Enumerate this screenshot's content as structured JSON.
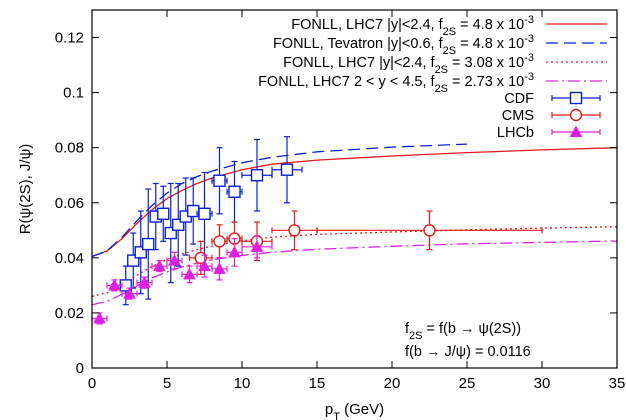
{
  "chart_data": {
    "type": "line",
    "xlabel": "p",
    "xlabel_sub": "T",
    "xlabel_unit": " (GeV)",
    "ylabel": "R(ψ(2S), J/ψ)",
    "xlim": [
      0,
      35
    ],
    "ylim": [
      0,
      0.13
    ],
    "xticks": [
      0,
      5,
      10,
      15,
      20,
      25,
      30,
      35
    ],
    "yticks": [
      0,
      0.02,
      0.04,
      0.06,
      0.08,
      0.1,
      0.12
    ],
    "ytick_labels": [
      "0",
      "0.02",
      "0.04",
      "0.06",
      "0.08",
      "0.1",
      "0.12"
    ],
    "grid": false,
    "legend_position": "top-right",
    "curves": [
      {
        "legend": {
          "pre": "FONLL, LHC7 |y|<2.4, f",
          "sub": "2S",
          "mid": " = 4.8 x 10",
          "sup": "-3"
        },
        "color": "#e41a1c",
        "dash": "solid",
        "x": [
          0,
          1,
          2,
          3,
          4,
          5,
          6,
          7,
          8,
          10,
          12,
          15,
          20,
          25,
          30,
          35
        ],
        "y": [
          0.0405,
          0.0425,
          0.047,
          0.0525,
          0.0575,
          0.0615,
          0.0645,
          0.067,
          0.069,
          0.072,
          0.074,
          0.0755,
          0.077,
          0.0782,
          0.0792,
          0.08
        ]
      },
      {
        "legend": {
          "pre": "FONLL, Tevatron |y|<0.6, f",
          "sub": "2S",
          "mid": " = 4.8 x 10",
          "sup": "-3"
        },
        "color": "#0b1fd1",
        "dash": "12,6",
        "x": [
          0,
          1,
          2,
          3,
          4,
          5,
          6,
          7,
          8,
          10,
          12,
          15,
          20,
          25
        ],
        "y": [
          0.0405,
          0.0425,
          0.0475,
          0.0535,
          0.059,
          0.0635,
          0.067,
          0.0695,
          0.0715,
          0.0745,
          0.0765,
          0.0785,
          0.0802,
          0.0813
        ]
      },
      {
        "legend": {
          "pre": "FONLL, LHC7 |y|<2.4, f",
          "sub": "2S",
          "mid": " = 3.08 x 10",
          "sup": "-3"
        },
        "color": "#e41a1c",
        "dash": "2,3",
        "x": [
          0,
          1,
          2,
          3,
          4,
          5,
          6,
          7,
          8,
          10,
          12,
          15,
          20,
          25,
          30,
          35
        ],
        "y": [
          0.026,
          0.0273,
          0.0302,
          0.0337,
          0.0369,
          0.0394,
          0.0414,
          0.043,
          0.0443,
          0.0462,
          0.0475,
          0.0485,
          0.0494,
          0.0502,
          0.0508,
          0.0513
        ]
      },
      {
        "legend": {
          "pre": "FONLL, LHC7 2 < y < 4.5, f",
          "sub": "2S",
          "mid": " = 2.73 x 10",
          "sup": "-3"
        },
        "color": "#e020e0",
        "dash": "12,4,2,4",
        "x": [
          0,
          1,
          2,
          3,
          4,
          5,
          6,
          7,
          8,
          10,
          12,
          15,
          20,
          25,
          30,
          35
        ],
        "y": [
          0.023,
          0.0242,
          0.0268,
          0.0298,
          0.0327,
          0.0349,
          0.0367,
          0.0381,
          0.0393,
          0.0409,
          0.042,
          0.0431,
          0.0442,
          0.0451,
          0.0456,
          0.0461
        ]
      }
    ],
    "data_series": [
      {
        "name": "CDF",
        "marker": "square",
        "color": "#0b1fd1",
        "points": [
          {
            "x": 2.25,
            "y": 0.03,
            "xerr": 0.25,
            "yerr": 0.007
          },
          {
            "x": 2.75,
            "y": 0.039,
            "xerr": 0.25,
            "yerr": 0.01
          },
          {
            "x": 3.25,
            "y": 0.042,
            "xerr": 0.25,
            "yerr": 0.015
          },
          {
            "x": 3.75,
            "y": 0.045,
            "xerr": 0.25,
            "yerr": 0.02
          },
          {
            "x": 4.25,
            "y": 0.055,
            "xerr": 0.25,
            "yerr": 0.012
          },
          {
            "x": 4.75,
            "y": 0.056,
            "xerr": 0.25,
            "yerr": 0.01
          },
          {
            "x": 5.25,
            "y": 0.049,
            "xerr": 0.25,
            "yerr": 0.018
          },
          {
            "x": 5.75,
            "y": 0.052,
            "xerr": 0.25,
            "yerr": 0.015
          },
          {
            "x": 6.25,
            "y": 0.055,
            "xerr": 0.25,
            "yerr": 0.014
          },
          {
            "x": 6.75,
            "y": 0.057,
            "xerr": 0.25,
            "yerr": 0.012
          },
          {
            "x": 7.5,
            "y": 0.056,
            "xerr": 0.5,
            "yerr": 0.015
          },
          {
            "x": 8.5,
            "y": 0.068,
            "xerr": 0.5,
            "yerr": 0.012
          },
          {
            "x": 9.5,
            "y": 0.064,
            "xerr": 0.5,
            "yerr": 0.011
          },
          {
            "x": 11.0,
            "y": 0.07,
            "xerr": 1.0,
            "yerr": 0.013
          },
          {
            "x": 13.0,
            "y": 0.072,
            "xerr": 1.0,
            "yerr": 0.012
          }
        ]
      },
      {
        "name": "CMS",
        "marker": "circle",
        "color": "#e41a1c",
        "points": [
          {
            "x": 7.25,
            "y": 0.04,
            "xerr": 0.75,
            "yerr": 0.006
          },
          {
            "x": 8.5,
            "y": 0.046,
            "xerr": 0.5,
            "yerr": 0.006
          },
          {
            "x": 9.5,
            "y": 0.047,
            "xerr": 0.5,
            "yerr": 0.006
          },
          {
            "x": 11.0,
            "y": 0.046,
            "xerr": 1.0,
            "yerr": 0.007
          },
          {
            "x": 13.5,
            "y": 0.05,
            "xerr": 1.5,
            "yerr": 0.007
          },
          {
            "x": 22.5,
            "y": 0.05,
            "xerr": 7.5,
            "yerr": 0.007
          }
        ]
      },
      {
        "name": "LHCb",
        "marker": "triangle",
        "color": "#e020e0",
        "points": [
          {
            "x": 0.5,
            "y": 0.018,
            "xerr": 0.5,
            "yerr": 0.002
          },
          {
            "x": 1.5,
            "y": 0.03,
            "xerr": 0.5,
            "yerr": 0.002
          },
          {
            "x": 2.5,
            "y": 0.027,
            "xerr": 0.5,
            "yerr": 0.002
          },
          {
            "x": 3.5,
            "y": 0.031,
            "xerr": 0.5,
            "yerr": 0.002
          },
          {
            "x": 4.5,
            "y": 0.037,
            "xerr": 0.5,
            "yerr": 0.002
          },
          {
            "x": 5.5,
            "y": 0.039,
            "xerr": 0.5,
            "yerr": 0.003
          },
          {
            "x": 6.5,
            "y": 0.034,
            "xerr": 0.5,
            "yerr": 0.003
          },
          {
            "x": 7.5,
            "y": 0.037,
            "xerr": 0.5,
            "yerr": 0.004
          },
          {
            "x": 8.5,
            "y": 0.036,
            "xerr": 0.5,
            "yerr": 0.004
          },
          {
            "x": 9.5,
            "y": 0.042,
            "xerr": 0.5,
            "yerr": 0.005
          },
          {
            "x": 11.0,
            "y": 0.044,
            "xerr": 1.0,
            "yerr": 0.004
          }
        ]
      }
    ],
    "annotations": [
      {
        "pre": "f",
        "sub": "2S",
        "post": " = f(b → ψ(2S))"
      },
      {
        "pre": "f(b → J/ψ) = 0.0116",
        "sub": "",
        "post": ""
      }
    ]
  }
}
